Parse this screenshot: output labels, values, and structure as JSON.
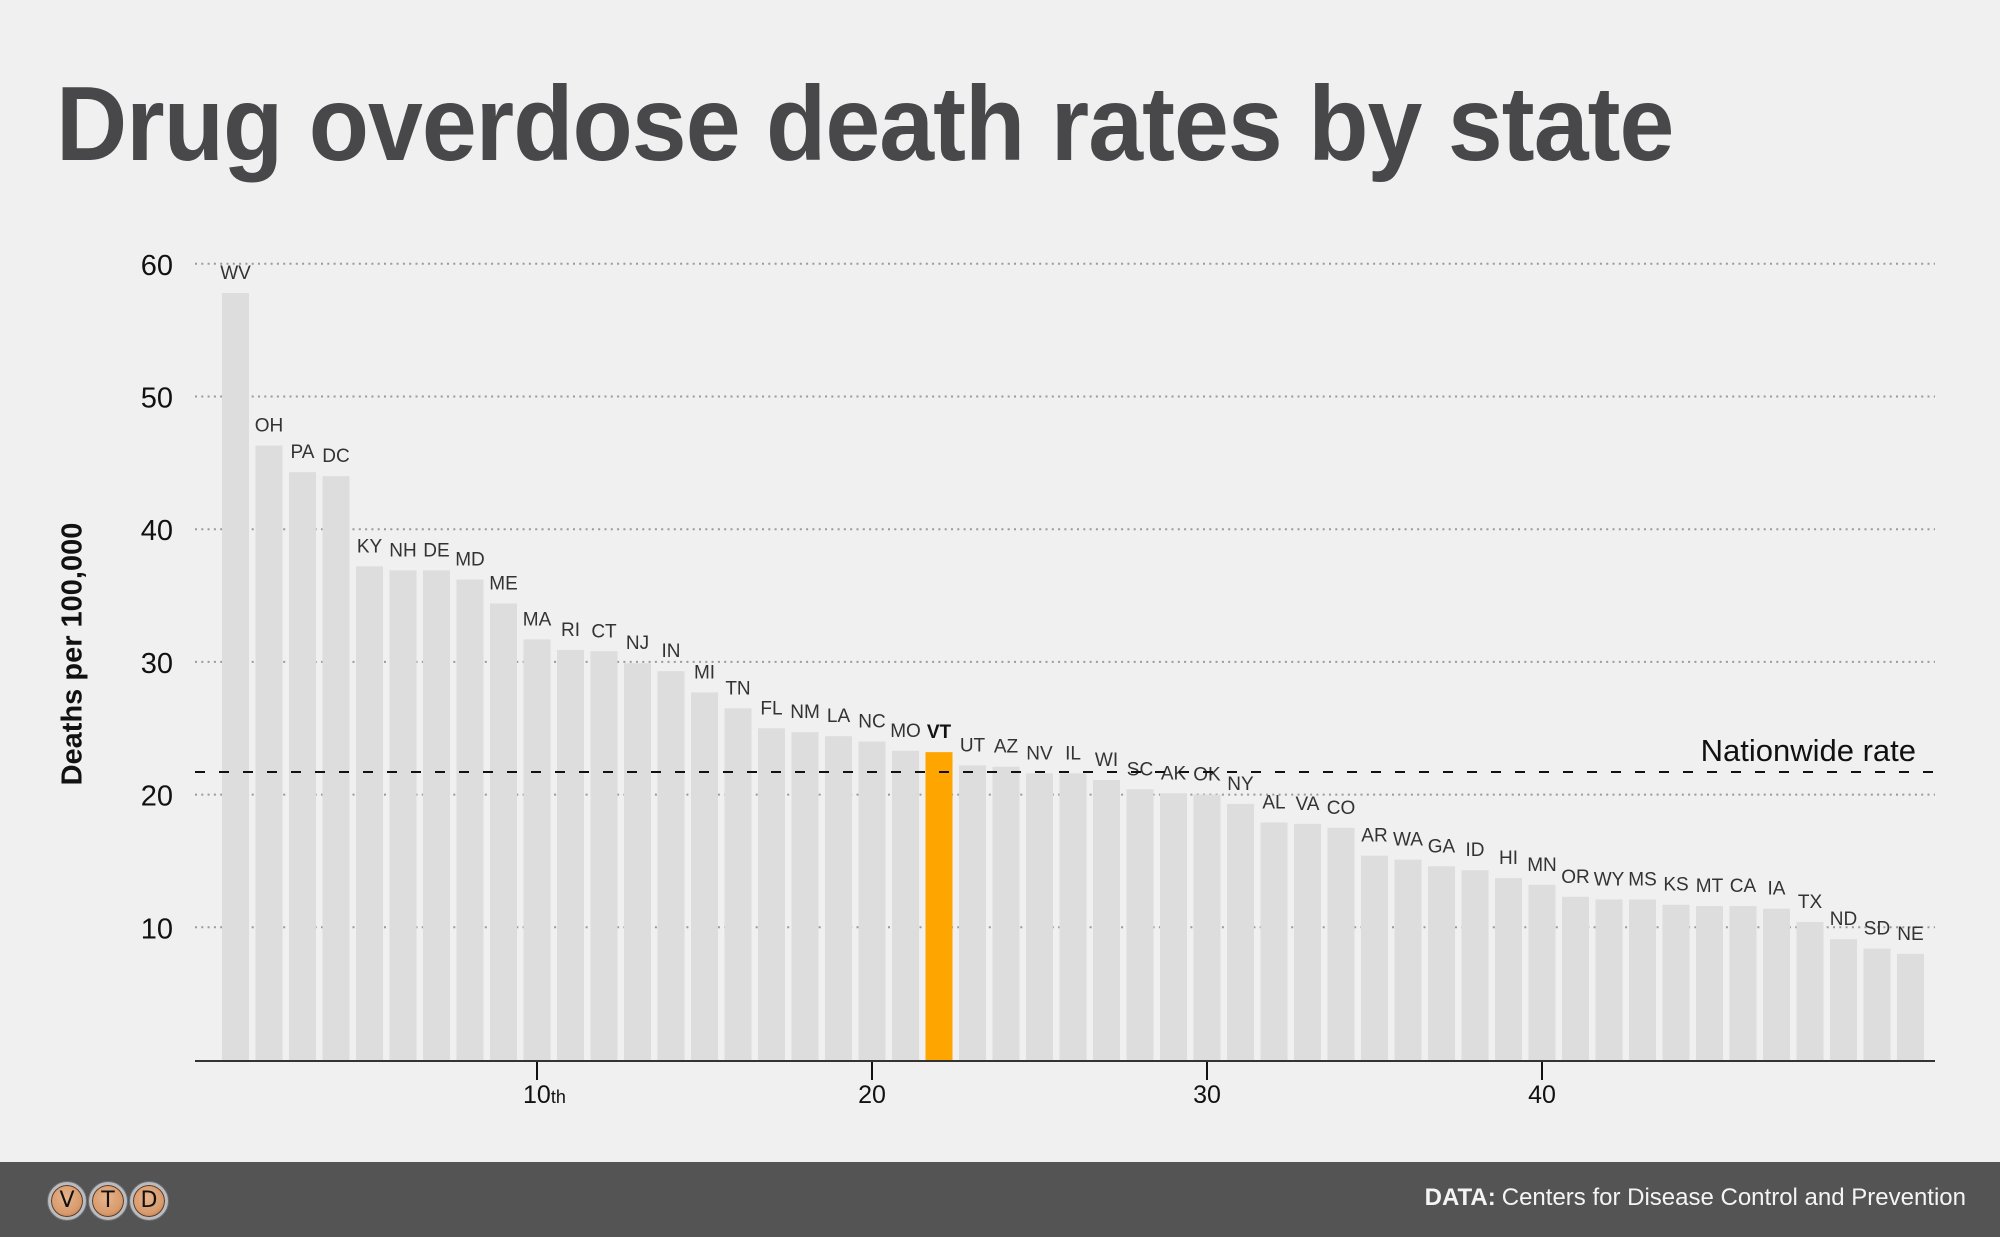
{
  "header": {
    "title": "Drug overdose death rates by state"
  },
  "chart_data": {
    "type": "bar",
    "title": "Drug overdose death rates by state",
    "xlabel": "",
    "ylabel": "Deaths per 100,000",
    "ylim": [
      0,
      60
    ],
    "yticks": [
      10,
      20,
      30,
      40,
      50,
      60
    ],
    "ytick_labels": [
      "10",
      "20",
      "30",
      "40",
      "50",
      "60"
    ],
    "xticks": [
      {
        "rank": 10,
        "label": "10",
        "suffix": "th"
      },
      {
        "rank": 20,
        "label": "20",
        "suffix": ""
      },
      {
        "rank": 30,
        "label": "30",
        "suffix": ""
      },
      {
        "rank": 40,
        "label": "40",
        "suffix": ""
      }
    ],
    "grid": true,
    "highlight": "VT",
    "highlight_color": "#FFA500",
    "bar_color": "#dddddd",
    "reference_line": {
      "label": "Nationwide rate",
      "value": 21.7
    },
    "categories": [
      "WV",
      "OH",
      "PA",
      "DC",
      "KY",
      "NH",
      "DE",
      "MD",
      "ME",
      "MA",
      "RI",
      "CT",
      "NJ",
      "IN",
      "MI",
      "TN",
      "FL",
      "NM",
      "LA",
      "NC",
      "MO",
      "VT",
      "UT",
      "AZ",
      "NV",
      "IL",
      "WI",
      "SC",
      "AK",
      "OK",
      "NY",
      "AL",
      "VA",
      "CO",
      "AR",
      "WA",
      "GA",
      "ID",
      "HI",
      "MN",
      "OR",
      "WY",
      "MS",
      "KS",
      "MT",
      "CA",
      "IA",
      "TX",
      "ND",
      "SD",
      "NE"
    ],
    "values": [
      57.8,
      46.3,
      44.3,
      44.0,
      37.2,
      36.9,
      36.9,
      36.2,
      34.4,
      31.7,
      30.9,
      30.8,
      29.9,
      29.3,
      27.7,
      26.5,
      25.0,
      24.7,
      24.4,
      24.0,
      23.3,
      23.2,
      22.2,
      22.1,
      21.6,
      21.6,
      21.1,
      20.4,
      20.1,
      20.0,
      19.3,
      17.9,
      17.8,
      17.5,
      15.4,
      15.1,
      14.6,
      14.3,
      13.7,
      13.2,
      12.3,
      12.1,
      12.1,
      11.7,
      11.6,
      11.6,
      11.4,
      10.4,
      9.1,
      8.4,
      8.0
    ]
  },
  "footer": {
    "logo_letters": [
      "V",
      "T",
      "D"
    ],
    "source_label": "DATA:",
    "source_text": "Centers for Disease Control and Prevention"
  }
}
